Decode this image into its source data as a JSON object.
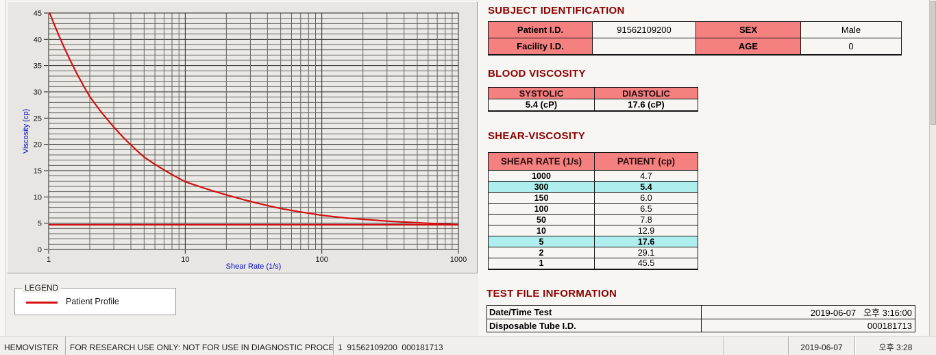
{
  "colors": {
    "section_title": "#8b0000",
    "table_header_bg": "#f48080",
    "highlight_bg": "#afeeee",
    "curve_red": "#d50f0f",
    "axis_label_blue": "#0008c6"
  },
  "chart_data": {
    "type": "line",
    "x_scale": "log",
    "title": "",
    "xlabel": "Shear Rate (1/s)",
    "ylabel": "Viscosity (cp)",
    "xlim": [
      1,
      1000
    ],
    "ylim": [
      0,
      45
    ],
    "x_ticks": [
      1,
      10,
      100,
      1000
    ],
    "y_ticks": [
      0,
      5,
      10,
      15,
      20,
      25,
      30,
      35,
      40,
      45
    ],
    "y_minor_step": 1,
    "grid": true,
    "legend_position": "below",
    "series": [
      {
        "name": "Patient Profile",
        "color": "#d50f0f",
        "points": [
          [
            1,
            45.5
          ],
          [
            2,
            29.1
          ],
          [
            5,
            17.6
          ],
          [
            10,
            12.9
          ],
          [
            50,
            7.8
          ],
          [
            100,
            6.5
          ],
          [
            150,
            6.0
          ],
          [
            300,
            5.4
          ],
          [
            1000,
            4.7
          ]
        ]
      }
    ],
    "reference_line": {
      "y": 4.7,
      "color": "#d50f0f"
    }
  },
  "legend": {
    "group_label": "LEGEND",
    "series_label": "Patient Profile",
    "line_color": "#d50f0f"
  },
  "subject": {
    "title": "SUBJECT IDENTIFICATION",
    "patient_id_label": "Patient I.D.",
    "patient_id_value": "91562109200",
    "sex_label": "SEX",
    "sex_value": "Male",
    "facility_id_label": "Facility I.D.",
    "facility_id_value": "",
    "age_label": "AGE",
    "age_value": "0"
  },
  "blood_viscosity": {
    "title": "BLOOD VISCOSITY",
    "systolic_label": "SYSTOLIC",
    "diastolic_label": "DIASTOLIC",
    "systolic_value": "5.4 (cP)",
    "diastolic_value": "17.6 (cP)"
  },
  "shear_viscosity": {
    "title": "SHEAR-VISCOSITY",
    "rate_header": "SHEAR RATE (1/s)",
    "patient_header": "PATIENT (cp)",
    "rows": [
      {
        "rate": "1000",
        "value": "4.7",
        "highlight": false
      },
      {
        "rate": "300",
        "value": "5.4",
        "highlight": true
      },
      {
        "rate": "150",
        "value": "6.0",
        "highlight": false
      },
      {
        "rate": "100",
        "value": "6.5",
        "highlight": false
      },
      {
        "rate": "50",
        "value": "7.8",
        "highlight": false
      },
      {
        "rate": "10",
        "value": "12.9",
        "highlight": false
      },
      {
        "rate": "5",
        "value": "17.6",
        "highlight": true
      },
      {
        "rate": "2",
        "value": "29.1",
        "highlight": false
      },
      {
        "rate": "1",
        "value": "45.5",
        "highlight": false
      }
    ]
  },
  "test_file": {
    "title": "TEST FILE INFORMATION",
    "date_label": "Date/Time Test",
    "date_value": "2019-06-07   오후 3:16:00",
    "tube_label": "Disposable Tube I.D.",
    "tube_value": "000181713"
  },
  "status_bar": {
    "items": [
      "HEMOVISTER",
      "FOR RESEARCH USE ONLY: NOT FOR USE IN DIAGNOSTIC PROCEDURES",
      "1  91562109200  000181713",
      "",
      "2019-06-07",
      "오후 3:28"
    ]
  }
}
